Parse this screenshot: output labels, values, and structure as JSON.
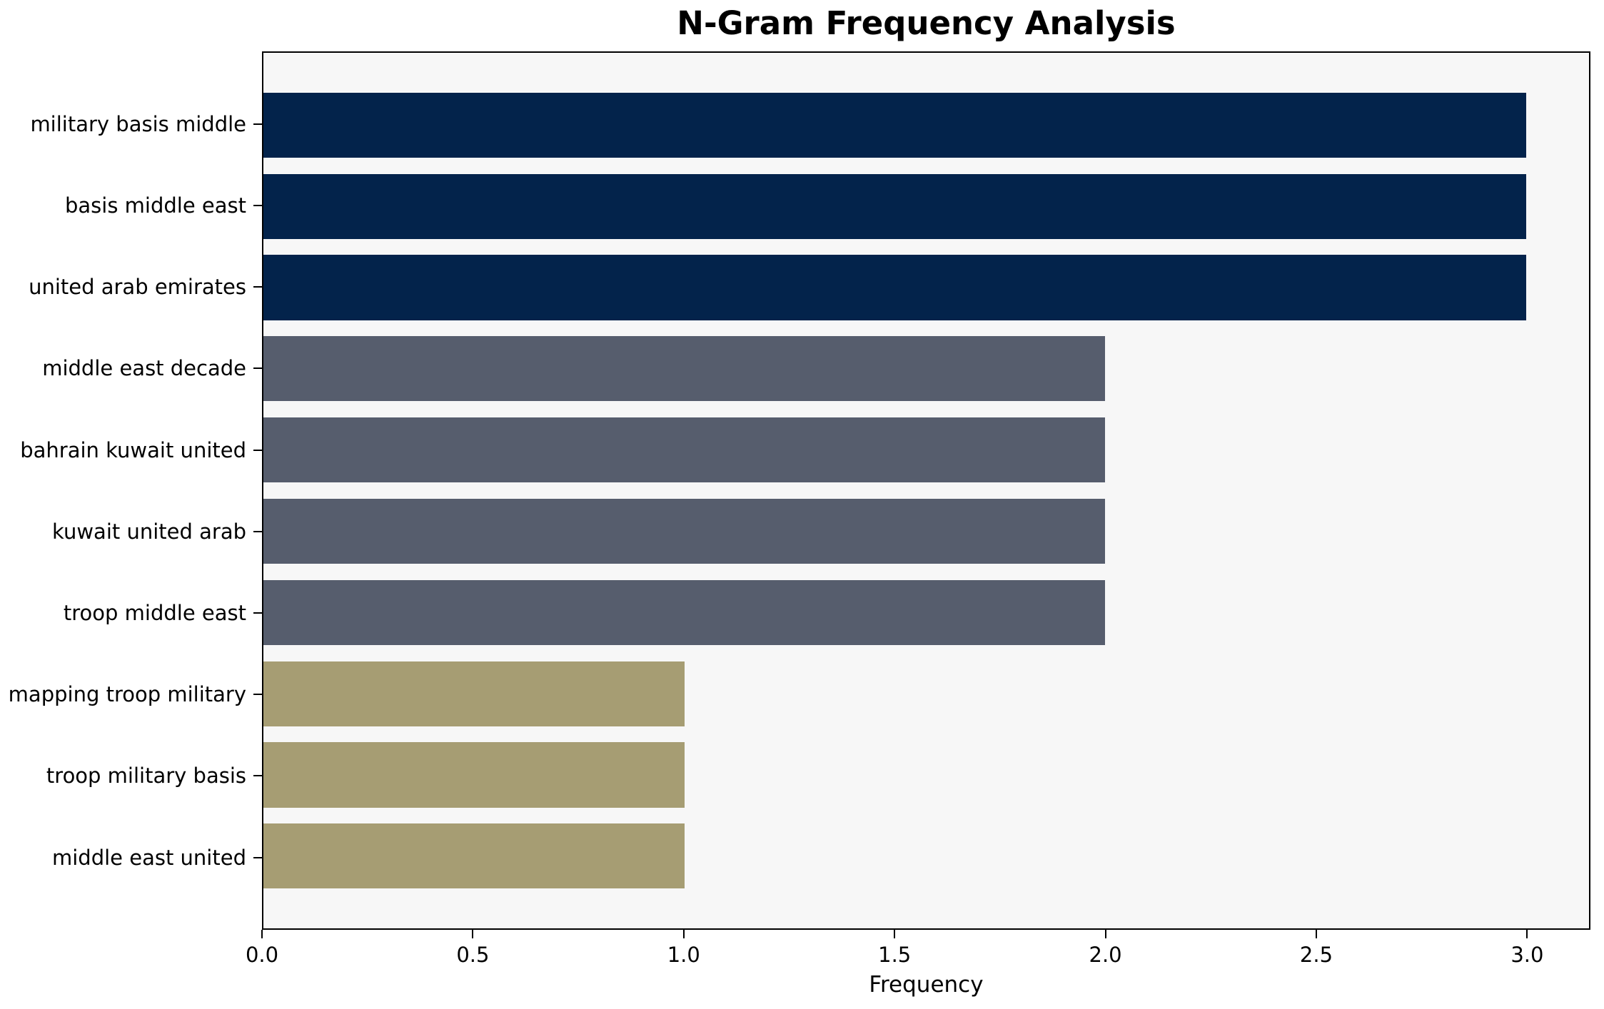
{
  "figure": {
    "background": "#ffffff",
    "plot_background": "#f7f7f7",
    "spine_color": "#000000",
    "text_color": "#000000"
  },
  "chart_data": {
    "type": "bar",
    "orientation": "horizontal",
    "title": "N-Gram Frequency Analysis",
    "xlabel": "Frequency",
    "ylabel": "",
    "categories": [
      "military basis middle",
      "basis middle east",
      "united arab emirates",
      "middle east decade",
      "bahrain kuwait united",
      "kuwait united arab",
      "troop middle east",
      "mapping troop military",
      "troop military basis",
      "middle east united"
    ],
    "values": [
      3,
      3,
      3,
      2,
      2,
      2,
      2,
      1,
      1,
      1
    ],
    "bar_colors": [
      "#03234B",
      "#03234B",
      "#03234B",
      "#565D6D",
      "#565D6D",
      "#565D6D",
      "#565D6D",
      "#A69D73",
      "#A69D73",
      "#A69D73"
    ],
    "color_legend": {
      "frequency_3": "#03234B",
      "frequency_2": "#565D6D",
      "frequency_1": "#A69D73"
    },
    "xlim": [
      0,
      3.15
    ],
    "xticks": [
      0.0,
      0.5,
      1.0,
      1.5,
      2.0,
      2.5,
      3.0
    ],
    "xtick_labels": [
      "0.0",
      "0.5",
      "1.0",
      "1.5",
      "2.0",
      "2.5",
      "3.0"
    ],
    "grid": false,
    "legend_position": "none"
  }
}
